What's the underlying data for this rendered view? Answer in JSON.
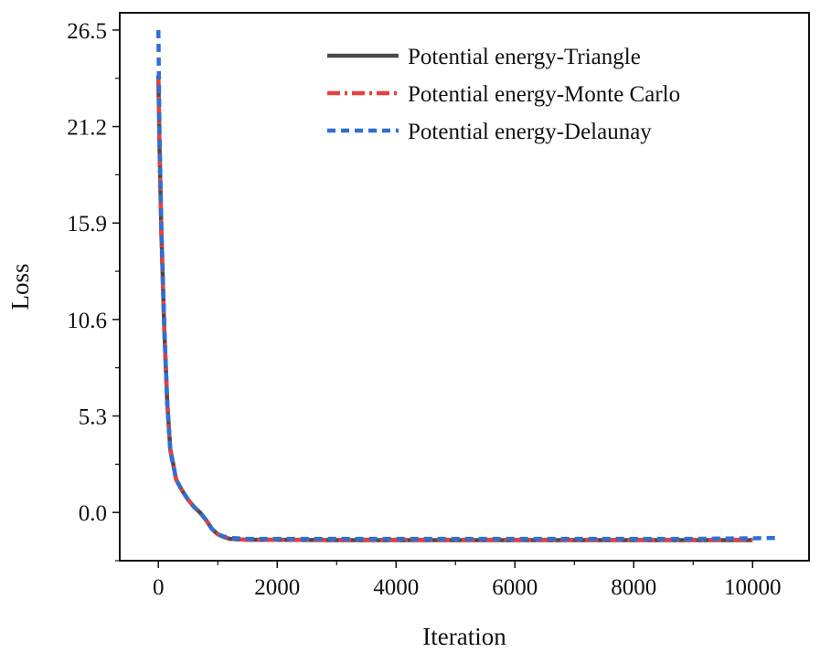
{
  "chart_data": {
    "type": "line",
    "title": "",
    "xlabel": "Iteration",
    "ylabel": "Loss",
    "xlim": [
      -650,
      10950
    ],
    "ylim": [
      -2.65,
      27.45
    ],
    "xticks": [
      0,
      2000,
      4000,
      6000,
      8000,
      10000
    ],
    "xtick_labels": [
      "0",
      "2000",
      "4000",
      "6000",
      "8000",
      "10000"
    ],
    "yticks": [
      0.0,
      5.3,
      10.6,
      15.9,
      21.2,
      26.5
    ],
    "ytick_labels": [
      "0.0",
      "5.3",
      "10.6",
      "15.9",
      "21.2",
      "26.5"
    ],
    "grid": false,
    "legend_position": "top-right",
    "series": [
      {
        "name": "Potential energy-Triangle",
        "color": "#4a4a4a",
        "style": "solid",
        "x": [
          0,
          20,
          50,
          100,
          150,
          200,
          300,
          400,
          500,
          600,
          700,
          800,
          900,
          1000,
          1100,
          1200,
          1500,
          2000,
          3000,
          4000,
          5000,
          6000,
          7000,
          8000,
          9000,
          10000
        ],
        "y": [
          24.0,
          20.0,
          15.5,
          10.0,
          6.0,
          3.5,
          1.8,
          1.2,
          0.7,
          0.3,
          0.0,
          -0.4,
          -0.9,
          -1.2,
          -1.35,
          -1.45,
          -1.5,
          -1.5,
          -1.52,
          -1.52,
          -1.52,
          -1.52,
          -1.52,
          -1.52,
          -1.52,
          -1.52
        ]
      },
      {
        "name": "Potential energy-Monte Carlo",
        "color": "#e8403a",
        "style": "dashdot",
        "x": [
          0,
          20,
          50,
          100,
          150,
          200,
          300,
          400,
          500,
          600,
          700,
          800,
          900,
          1000,
          1100,
          1200,
          1500,
          2000,
          3000,
          4000,
          5000,
          6000,
          7000,
          8000,
          9000,
          10000
        ],
        "y": [
          23.8,
          19.8,
          15.2,
          10.0,
          6.0,
          3.4,
          1.8,
          1.2,
          0.7,
          0.3,
          0.0,
          -0.4,
          -0.9,
          -1.2,
          -1.35,
          -1.45,
          -1.5,
          -1.5,
          -1.5,
          -1.5,
          -1.5,
          -1.5,
          -1.5,
          -1.5,
          -1.5,
          -1.5
        ]
      },
      {
        "name": "Potential energy-Delaunay",
        "color": "#2f6fd6",
        "style": "dashed",
        "x": [
          0,
          20,
          50,
          100,
          150,
          200,
          300,
          400,
          500,
          600,
          700,
          800,
          900,
          1000,
          1100,
          1200,
          1500,
          2000,
          3000,
          4000,
          5000,
          6000,
          7000,
          8000,
          9000,
          10000,
          10400
        ],
        "y": [
          26.5,
          20.8,
          15.8,
          10.2,
          6.0,
          3.4,
          1.8,
          1.2,
          0.7,
          0.3,
          0.0,
          -0.4,
          -0.9,
          -1.2,
          -1.32,
          -1.4,
          -1.45,
          -1.45,
          -1.45,
          -1.45,
          -1.45,
          -1.45,
          -1.45,
          -1.45,
          -1.45,
          -1.42,
          -1.4
        ]
      }
    ]
  }
}
